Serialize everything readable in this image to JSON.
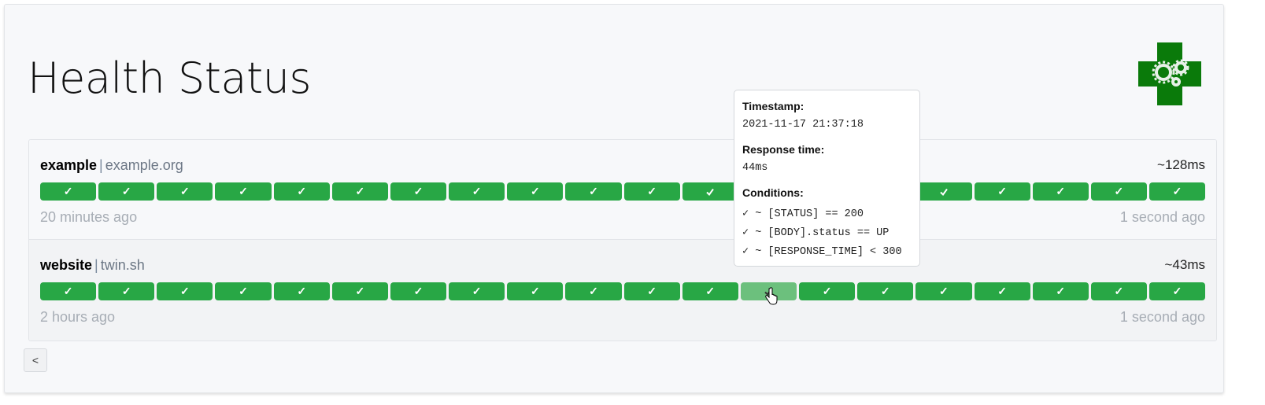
{
  "page": {
    "title": "Health Status",
    "logo_alt": "health cross with gears",
    "back_label": "<"
  },
  "colors": {
    "success": "#28a745",
    "hover": "#6cc07d"
  },
  "services": [
    {
      "name": "example",
      "host": "example.org",
      "avg_response": "~128ms",
      "oldest": "20 minutes ago",
      "newest": "1 second ago",
      "results": [
        "success",
        "success",
        "success",
        "success",
        "success",
        "success",
        "success",
        "success",
        "success",
        "success",
        "success",
        "success",
        "success",
        "success",
        "success",
        "success",
        "success",
        "success",
        "success",
        "success"
      ]
    },
    {
      "name": "website",
      "host": "twin.sh",
      "avg_response": "~43ms",
      "oldest": "2 hours ago",
      "newest": "1 second ago",
      "results": [
        "success",
        "success",
        "success",
        "success",
        "success",
        "success",
        "success",
        "success",
        "success",
        "success",
        "success",
        "success",
        "success",
        "success",
        "success",
        "success",
        "success",
        "success",
        "success",
        "success"
      ],
      "hovered_index": 12
    }
  ],
  "separator": "|",
  "check_glyph": "✓",
  "tooltip": {
    "timestamp_label": "Timestamp:",
    "timestamp": "2021-11-17 21:37:18",
    "response_time_label": "Response time:",
    "response_time": "44ms",
    "conditions_label": "Conditions:",
    "conditions": [
      "✓ ~ [STATUS] == 200",
      "✓ ~ [BODY].status == UP",
      "✓ ~ [RESPONSE_TIME] < 300"
    ]
  }
}
